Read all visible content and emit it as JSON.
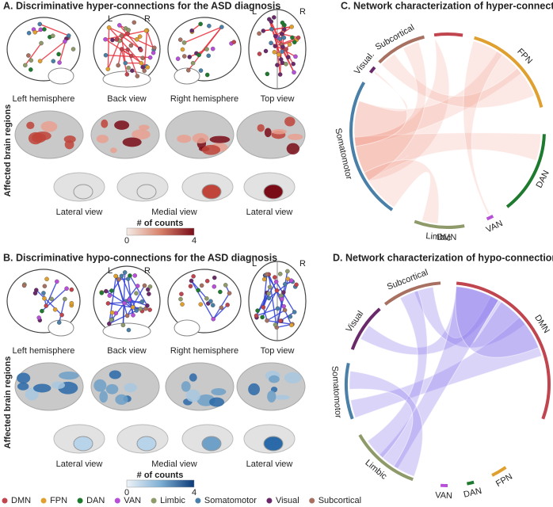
{
  "panels": [
    {
      "title": "A. Discriminative hyper-connections for the ASD diagnosis",
      "orientation": [
        "L",
        "R"
      ],
      "views": [
        "Left hemisphere",
        "Back view",
        "Right hemisphere",
        "Top view"
      ],
      "y_label": "Affected brain regions",
      "subcortical_views": [
        "Lateral view",
        "Medial view",
        "Lateral view"
      ],
      "colorbar": {
        "label": "# of counts",
        "min": "0",
        "max": "4"
      }
    },
    {
      "title": "B. Discriminative hypo-connections for the ASD diagnosis",
      "orientation": [
        "L",
        "R"
      ],
      "views": [
        "Left hemisphere",
        "Back view",
        "Right hemisphere",
        "Top view"
      ],
      "y_label": "Affected brain regions",
      "subcortical_views": [
        "Lateral view",
        "Medial view",
        "Lateral view"
      ],
      "colorbar": {
        "label": "# of counts",
        "min": "0",
        "max": "4"
      }
    }
  ],
  "chords": [
    {
      "title": "C. Network characterization of hyper-connections",
      "labels": [
        "DMN",
        "FPN",
        "DAN",
        "VAN",
        "Limbic",
        "Somatomotor",
        "Visual.",
        "Subcortical"
      ]
    },
    {
      "title": "D. Network characterization of hypo-connections",
      "labels": [
        "DMN",
        "FPN",
        "DAN",
        "VAN",
        "Limbic",
        "Somatomotor",
        "Visual",
        "Subcortical"
      ]
    }
  ],
  "legend": [
    "DMN",
    "FPN",
    "DAN",
    "VAN",
    "Limbic",
    "Somatomotor",
    "Visual",
    "Subcortical"
  ]
}
